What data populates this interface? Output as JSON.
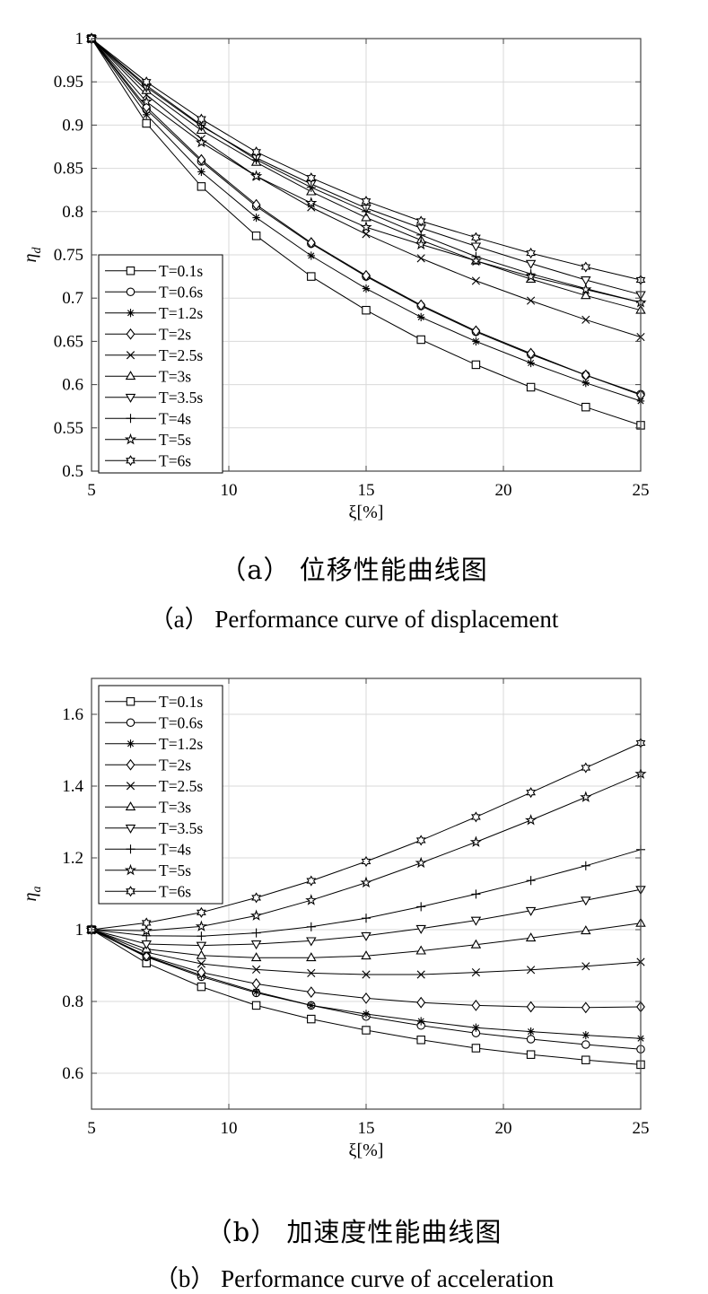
{
  "chart_data": [
    {
      "type": "line",
      "id": "a",
      "xlabel": "ξ[%]",
      "ylabel": "η",
      "ylabel_sub": "d",
      "xlim": [
        5,
        25
      ],
      "ylim": [
        0.5,
        1.0
      ],
      "xticks": [
        5,
        10,
        15,
        20,
        25
      ],
      "xtick_labels": [
        "5",
        "10",
        "15",
        "20",
        "25"
      ],
      "yticks": [
        0.5,
        0.55,
        0.6,
        0.65,
        0.7,
        0.75,
        0.8,
        0.85,
        0.9,
        0.95,
        1.0
      ],
      "ytick_labels": [
        "0.5",
        "0.55",
        "0.6",
        "0.65",
        "0.7",
        "0.75",
        "0.8",
        "0.85",
        "0.9",
        "0.95",
        "1"
      ],
      "grid": true,
      "legend_position": "bottom-left",
      "x": [
        5,
        7,
        9,
        11,
        13,
        15,
        17,
        19,
        21,
        23,
        25
      ],
      "series": [
        {
          "name": "T=0.1s",
          "marker": "square",
          "values": [
            1.0,
            0.902,
            0.829,
            0.772,
            0.725,
            0.686,
            0.652,
            0.623,
            0.597,
            0.574,
            0.553
          ]
        },
        {
          "name": "T=0.6s",
          "marker": "circle",
          "values": [
            1.0,
            0.918,
            0.858,
            0.806,
            0.763,
            0.725,
            0.691,
            0.661,
            0.635,
            0.611,
            0.589
          ]
        },
        {
          "name": "T=1.2s",
          "marker": "asterisk",
          "values": [
            1.0,
            0.912,
            0.846,
            0.793,
            0.749,
            0.711,
            0.678,
            0.65,
            0.625,
            0.602,
            0.581
          ]
        },
        {
          "name": "T=2s",
          "marker": "diamond",
          "values": [
            1.0,
            0.921,
            0.86,
            0.808,
            0.764,
            0.726,
            0.692,
            0.662,
            0.636,
            0.611,
            0.588
          ]
        },
        {
          "name": "T=2.5s",
          "marker": "x",
          "values": [
            1.0,
            0.935,
            0.884,
            0.841,
            0.805,
            0.774,
            0.746,
            0.72,
            0.697,
            0.675,
            0.655
          ]
        },
        {
          "name": "T=3s",
          "marker": "triangle-up",
          "values": [
            1.0,
            0.94,
            0.894,
            0.857,
            0.823,
            0.793,
            0.767,
            0.743,
            0.722,
            0.703,
            0.686
          ]
        },
        {
          "name": "T=3.5s",
          "marker": "triangle-down",
          "values": [
            1.0,
            0.944,
            0.899,
            0.862,
            0.832,
            0.804,
            0.781,
            0.76,
            0.74,
            0.721,
            0.704
          ]
        },
        {
          "name": "T=4s",
          "marker": "plus",
          "values": [
            1.0,
            0.946,
            0.9,
            0.86,
            0.828,
            0.8,
            0.773,
            0.748,
            0.728,
            0.711,
            0.695
          ]
        },
        {
          "name": "T=5s",
          "marker": "pentagram",
          "values": [
            1.0,
            0.927,
            0.88,
            0.841,
            0.81,
            0.782,
            0.762,
            0.743,
            0.725,
            0.71,
            0.695
          ]
        },
        {
          "name": "T=6s",
          "marker": "hexagram",
          "values": [
            1.0,
            0.95,
            0.907,
            0.869,
            0.839,
            0.812,
            0.789,
            0.77,
            0.752,
            0.736,
            0.721
          ]
        }
      ]
    },
    {
      "type": "line",
      "id": "b",
      "xlabel": "ξ[%]",
      "ylabel": "η",
      "ylabel_sub": "a",
      "xlim": [
        5,
        25
      ],
      "ylim": [
        0.5,
        1.7
      ],
      "xticks": [
        5,
        10,
        15,
        20,
        25
      ],
      "xtick_labels": [
        "5",
        "10",
        "15",
        "20",
        "25"
      ],
      "yticks": [
        0.6,
        0.8,
        1.0,
        1.2,
        1.4,
        1.6
      ],
      "ytick_labels": [
        "0.6",
        "0.8",
        "1",
        "1.2",
        "1.4",
        "1.6"
      ],
      "grid": true,
      "legend_position": "top-left",
      "x": [
        5,
        7,
        9,
        11,
        13,
        15,
        17,
        19,
        21,
        23,
        25
      ],
      "series": [
        {
          "name": "T=0.1s",
          "marker": "square",
          "values": [
            1.0,
            0.907,
            0.841,
            0.789,
            0.751,
            0.72,
            0.693,
            0.67,
            0.652,
            0.637,
            0.624
          ]
        },
        {
          "name": "T=0.6s",
          "marker": "circle",
          "values": [
            1.0,
            0.924,
            0.869,
            0.824,
            0.789,
            0.758,
            0.733,
            0.712,
            0.695,
            0.68,
            0.667
          ]
        },
        {
          "name": "T=1.2s",
          "marker": "asterisk",
          "values": [
            1.0,
            0.926,
            0.873,
            0.827,
            0.789,
            0.765,
            0.745,
            0.727,
            0.716,
            0.706,
            0.697
          ]
        },
        {
          "name": "T=2s",
          "marker": "diamond",
          "values": [
            1.0,
            0.928,
            0.881,
            0.849,
            0.826,
            0.809,
            0.797,
            0.789,
            0.785,
            0.783,
            0.785
          ]
        },
        {
          "name": "T=2.5s",
          "marker": "x",
          "values": [
            1.0,
            0.937,
            0.905,
            0.889,
            0.879,
            0.875,
            0.875,
            0.881,
            0.888,
            0.898,
            0.91
          ]
        },
        {
          "name": "T=3s",
          "marker": "triangle-up",
          "values": [
            1.0,
            0.946,
            0.928,
            0.922,
            0.922,
            0.927,
            0.941,
            0.958,
            0.977,
            0.997,
            1.018
          ]
        },
        {
          "name": "T=3.5s",
          "marker": "triangle-down",
          "values": [
            1.0,
            0.96,
            0.956,
            0.96,
            0.969,
            0.983,
            1.003,
            1.026,
            1.053,
            1.082,
            1.112
          ]
        },
        {
          "name": "T=4s",
          "marker": "plus",
          "values": [
            1.0,
            0.983,
            0.982,
            0.991,
            1.008,
            1.032,
            1.064,
            1.099,
            1.137,
            1.178,
            1.223
          ]
        },
        {
          "name": "T=5s",
          "marker": "pentagram",
          "values": [
            1.0,
            0.997,
            1.009,
            1.039,
            1.082,
            1.131,
            1.186,
            1.244,
            1.305,
            1.369,
            1.434
          ]
        },
        {
          "name": "T=6s",
          "marker": "hexagram",
          "values": [
            1.0,
            1.019,
            1.048,
            1.089,
            1.136,
            1.19,
            1.249,
            1.314,
            1.382,
            1.451,
            1.52
          ]
        }
      ]
    }
  ],
  "captions": {
    "a_zh": "（a） 位移性能曲线图",
    "a_en": "（a） Performance curve of displacement",
    "b_zh": "（b） 加速度性能曲线图",
    "b_en": "（b） Performance curve of acceleration"
  }
}
